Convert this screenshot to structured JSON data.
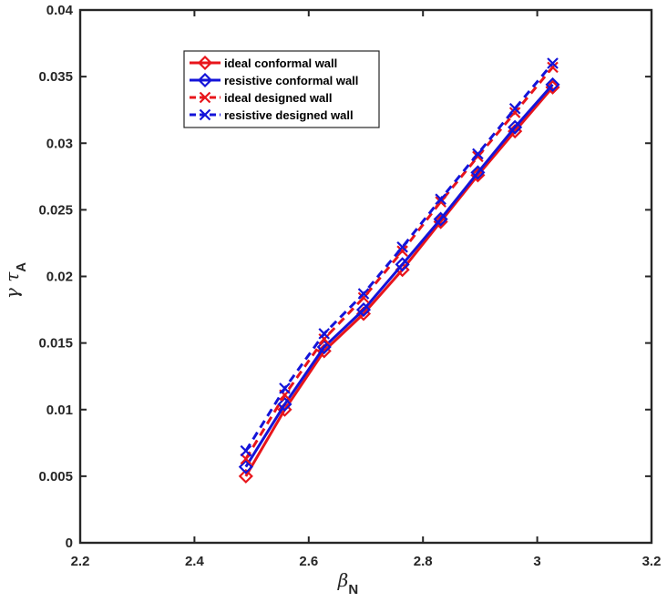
{
  "chart_data": {
    "type": "line",
    "xlabel": {
      "main": "β",
      "sub": "N"
    },
    "ylabel": {
      "main": "γ τ",
      "sub": "A"
    },
    "xlim": [
      2.2,
      3.2
    ],
    "ylim": [
      0,
      0.04
    ],
    "xticks": [
      "2.2",
      "2.4",
      "2.6",
      "2.8",
      "3",
      "3.2"
    ],
    "yticks": [
      "0",
      "0.005",
      "0.01",
      "0.015",
      "0.02",
      "0.025",
      "0.03",
      "0.035",
      "0.04"
    ],
    "grid": false,
    "legend_position": "top-left",
    "x": [
      2.49,
      2.558,
      2.627,
      2.696,
      2.764,
      2.831,
      2.896,
      2.961,
      3.027
    ],
    "series": [
      {
        "name": "ideal conformal wall",
        "color": "#e8151b",
        "marker": "diamond",
        "dash": "solid",
        "values": [
          0.005,
          0.01,
          0.0144,
          0.0172,
          0.0205,
          0.0241,
          0.0276,
          0.0309,
          0.0342
        ]
      },
      {
        "name": "resistive conformal wall",
        "color": "#1414d9",
        "marker": "diamond",
        "dash": "solid",
        "values": [
          0.0057,
          0.0104,
          0.0147,
          0.0175,
          0.0209,
          0.0243,
          0.0278,
          0.0312,
          0.0344
        ]
      },
      {
        "name": "ideal designed wall",
        "color": "#e8151b",
        "marker": "x",
        "dash": "dashed",
        "values": [
          0.0063,
          0.0111,
          0.0153,
          0.0184,
          0.0219,
          0.0256,
          0.029,
          0.0323,
          0.0357
        ]
      },
      {
        "name": "resistive designed wall",
        "color": "#1414d9",
        "marker": "x",
        "dash": "dashed",
        "values": [
          0.0069,
          0.0116,
          0.0157,
          0.0187,
          0.0222,
          0.0258,
          0.0292,
          0.0326,
          0.036
        ]
      }
    ]
  }
}
